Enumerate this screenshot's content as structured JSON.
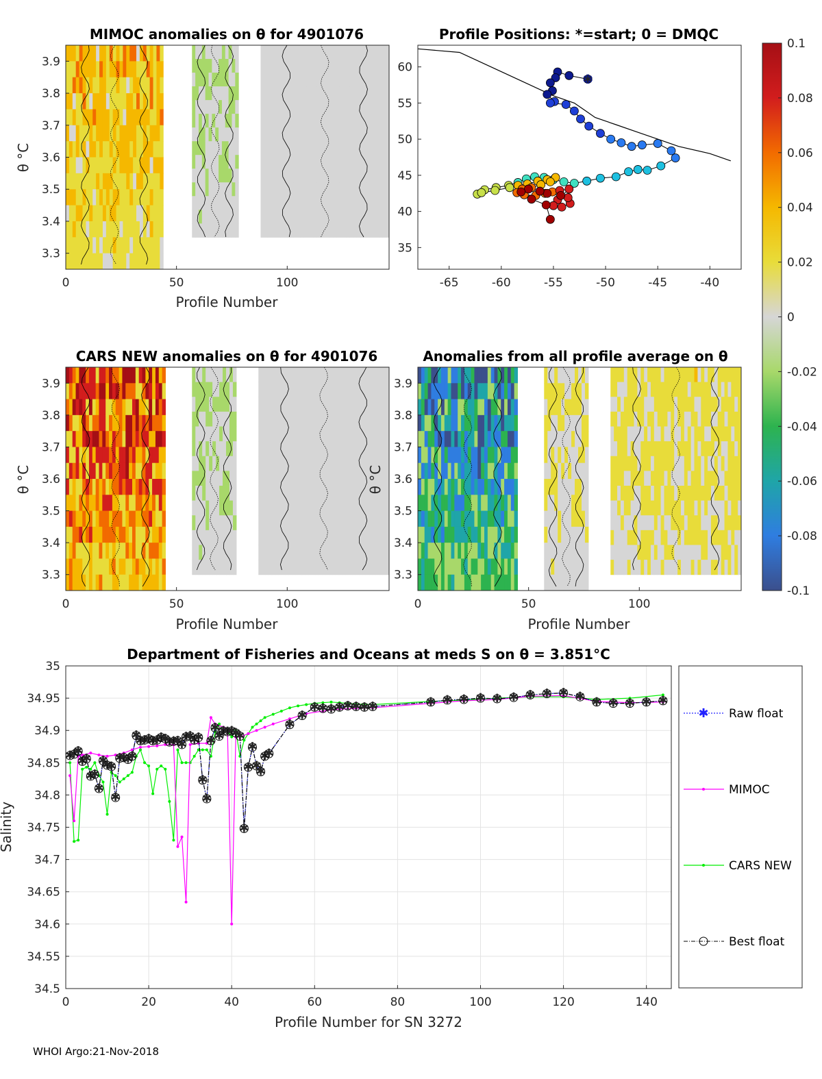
{
  "footer": "WHOI Argo:21-Nov-2018",
  "colors": {
    "mimoc": "#ff00ff",
    "cars": "#00ee00",
    "raw": "#2020ff",
    "best": "#000000",
    "land": "#000000"
  },
  "colorbar": {
    "ticks": [
      "0.1",
      "0.08",
      "0.06",
      "0.04",
      "0.02",
      "0",
      "-0.02",
      "-0.04",
      "-0.06",
      "-0.08",
      "-0.1"
    ],
    "values": [
      0.1,
      0.08,
      0.06,
      0.04,
      0.02,
      0,
      -0.02,
      -0.04,
      -0.06,
      -0.08,
      -0.1
    ],
    "range": [
      -0.1,
      0.1
    ],
    "stops": [
      "#3b4f8c",
      "#2f7de0",
      "#1fa5a8",
      "#2db34f",
      "#a8d86a",
      "#d6d6d6",
      "#e8dc3a",
      "#f5b800",
      "#f26b00",
      "#d21d1d",
      "#a50f15"
    ]
  },
  "chart_data": [
    {
      "type": "heatmap",
      "id": "mimoc",
      "title": "MIMOC anomalies on θ  for 4901076",
      "xlabel": "Profile Number",
      "ylabel": "θ °C",
      "xlim": [
        0,
        146
      ],
      "ylim": [
        3.25,
        3.95
      ],
      "xticks": [
        "0",
        "50",
        "100"
      ],
      "xtick_values": [
        0,
        50,
        100
      ],
      "yticks": [
        "3.3",
        "3.4",
        "3.5",
        "3.6",
        "3.7",
        "3.8",
        "3.9"
      ],
      "ytick_values": [
        3.3,
        3.4,
        3.5,
        3.6,
        3.7,
        3.8,
        3.9
      ],
      "segments": [
        {
          "x": [
            0,
            44
          ],
          "ymin": 3.25,
          "anom": 0.03
        },
        {
          "x": [
            57,
            78
          ],
          "ymin": 3.35,
          "anom": -0.01
        },
        {
          "x": [
            88,
            146
          ],
          "ymin": 3.35,
          "anom": 0.0
        }
      ]
    },
    {
      "type": "map",
      "id": "positions",
      "title": "Profile Positions: *=start; 0 = DMQC",
      "xlim": [
        -68,
        -37
      ],
      "ylim": [
        32,
        63
      ],
      "xticks": [
        "-65",
        "-60",
        "-55",
        "-50",
        "-45",
        "-40"
      ],
      "xtick_values": [
        -65,
        -60,
        -55,
        -50,
        -45,
        -40
      ],
      "yticks": [
        "35",
        "40",
        "45",
        "50",
        "55",
        "60"
      ],
      "ytick_values": [
        35,
        40,
        45,
        50,
        55,
        60
      ],
      "start": [
        -51.7,
        58.3
      ],
      "track_lon": [
        -51.7,
        -53.5,
        -54.6,
        -54.8,
        -55.3,
        -55.1,
        -55.6,
        -54.9,
        -55.3,
        -53.8,
        -53.0,
        -52.4,
        -51.6,
        -50.5,
        -49.5,
        -48.5,
        -47.5,
        -46.5,
        -45.0,
        -43.7,
        -43.3,
        -44.7,
        -46.0,
        -46.9,
        -47.8,
        -49.0,
        -50.5,
        -51.8,
        -53.0,
        -54.0,
        -55.0,
        -55.9,
        -56.8,
        -57.6,
        -58.4,
        -59.3,
        -60.5,
        -61.6,
        -62.3,
        -61.9,
        -60.6,
        -59.2,
        -58.4,
        -57.5,
        -56.5,
        -55.6,
        -54.8,
        -55.3,
        -56.2,
        -57.1,
        -58.0,
        -58.5,
        -57.8,
        -56.7,
        -55.8,
        -55.1,
        -54.4,
        -53.5,
        -54.6,
        -55.0,
        -54.2,
        -53.4,
        -53.6,
        -54.3,
        -55.6,
        -56.3,
        -57.4,
        -58.1,
        -57.1,
        -55.7,
        -55.3
      ],
      "track_lat": [
        58.3,
        58.8,
        59.3,
        58.5,
        57.8,
        56.7,
        56.2,
        55.2,
        55.0,
        54.8,
        53.9,
        52.8,
        51.8,
        50.8,
        50.0,
        49.5,
        49.0,
        49.2,
        49.4,
        48.4,
        47.4,
        46.3,
        45.7,
        45.8,
        45.5,
        44.8,
        44.6,
        44.2,
        43.9,
        44.1,
        44.4,
        44.7,
        44.8,
        44.5,
        44.0,
        43.6,
        43.3,
        43.0,
        42.4,
        42.6,
        42.9,
        43.3,
        43.6,
        43.8,
        44.2,
        44.4,
        44.7,
        44.1,
        43.7,
        43.3,
        43.1,
        42.6,
        42.3,
        42.2,
        42.5,
        42.7,
        42.9,
        43.1,
        41.6,
        40.8,
        40.6,
        41.1,
        41.9,
        42.2,
        42.5,
        42.8,
        43.1,
        42.7,
        41.7,
        40.9,
        38.9
      ],
      "coast_lon": [
        -68,
        -64,
        -61,
        -58,
        -55,
        -53,
        -52,
        -51,
        -49,
        -47,
        -45,
        -43,
        -40,
        -38
      ],
      "coast_lat": [
        62.5,
        62,
        60,
        58,
        56,
        55,
        54,
        53,
        52,
        51,
        50,
        49,
        48,
        47
      ]
    },
    {
      "type": "heatmap",
      "id": "cars",
      "title": "CARS NEW anomalies on θ for 4901076",
      "xlabel": "Profile Number",
      "ylabel": "θ °C",
      "xlim": [
        0,
        146
      ],
      "ylim": [
        3.25,
        3.95
      ],
      "xticks": [
        "0",
        "50",
        "100"
      ],
      "xtick_values": [
        0,
        50,
        100
      ],
      "yticks": [
        "3.3",
        "3.4",
        "3.5",
        "3.6",
        "3.7",
        "3.8",
        "3.9"
      ],
      "ytick_values": [
        3.3,
        3.4,
        3.5,
        3.6,
        3.7,
        3.8,
        3.9
      ],
      "segments": [
        {
          "x": [
            0,
            45
          ],
          "ymin": 3.25,
          "anom": 0.06
        },
        {
          "x": [
            57,
            77
          ],
          "ymin": 3.3,
          "anom": -0.01
        },
        {
          "x": [
            87,
            146
          ],
          "ymin": 3.3,
          "anom": 0.0
        }
      ]
    },
    {
      "type": "heatmap",
      "id": "avg",
      "title": "Anomalies from all profile average on θ",
      "xlabel": "Profile Number",
      "ylabel": "θ °C",
      "xlim": [
        0,
        146
      ],
      "ylim": [
        3.25,
        3.95
      ],
      "xticks": [
        "0",
        "50",
        "100"
      ],
      "xtick_values": [
        0,
        50,
        100
      ],
      "yticks": [
        "3.3",
        "3.4",
        "3.5",
        "3.6",
        "3.7",
        "3.8",
        "3.9"
      ],
      "ytick_values": [
        3.3,
        3.4,
        3.5,
        3.6,
        3.7,
        3.8,
        3.9
      ],
      "segments": [
        {
          "x": [
            0,
            45
          ],
          "ymin": 3.25,
          "anom": -0.06
        },
        {
          "x": [
            57,
            77
          ],
          "ymin": 3.25,
          "anom": 0.01
        },
        {
          "x": [
            87,
            146
          ],
          "ymin": 3.3,
          "anom": 0.015
        }
      ]
    },
    {
      "type": "line",
      "id": "salinity",
      "title": "Department of Fisheries and Oceans at meds S on θ = 3.851°C",
      "xlabel": "Profile Number for SN 3272",
      "ylabel": "Salinity",
      "xlim": [
        0,
        146
      ],
      "ylim": [
        34.5,
        35
      ],
      "xticks": [
        "0",
        "20",
        "40",
        "60",
        "80",
        "100",
        "120",
        "140"
      ],
      "xtick_values": [
        0,
        20,
        40,
        60,
        80,
        100,
        120,
        140
      ],
      "yticks": [
        "34.5",
        "34.55",
        "34.6",
        "34.65",
        "34.7",
        "34.75",
        "34.8",
        "34.85",
        "34.9",
        "34.95",
        "35"
      ],
      "ytick_values": [
        34.5,
        34.55,
        34.6,
        34.65,
        34.7,
        34.75,
        34.8,
        34.85,
        34.9,
        34.95,
        35
      ],
      "legend": [
        "Raw float",
        "MIMOC",
        "CARS NEW",
        "Best float"
      ],
      "x_float": [
        1,
        2,
        3,
        4,
        5,
        6,
        7,
        8,
        9,
        10,
        11,
        12,
        13,
        14,
        15,
        16,
        17,
        18,
        19,
        20,
        21,
        22,
        23,
        24,
        25,
        26,
        27,
        28,
        29,
        30,
        31,
        32,
        33,
        34,
        35,
        36,
        37,
        38,
        39,
        40,
        41,
        42,
        43,
        44,
        45,
        46,
        47,
        48,
        49,
        54,
        57,
        60,
        62,
        64,
        66,
        68,
        70,
        72,
        74,
        88,
        92,
        96,
        100,
        104,
        108,
        112,
        116,
        120,
        124,
        128,
        132,
        136,
        140,
        144
      ],
      "raw_float": [
        34.861,
        34.863,
        34.868,
        34.852,
        34.856,
        34.829,
        34.832,
        34.81,
        34.853,
        34.846,
        34.844,
        34.796,
        34.857,
        34.858,
        34.855,
        34.86,
        34.892,
        34.884,
        34.885,
        34.887,
        34.884,
        34.885,
        34.889,
        34.887,
        34.882,
        34.883,
        34.884,
        34.878,
        34.89,
        34.891,
        34.885,
        34.889,
        34.823,
        34.794,
        34.884,
        34.904,
        34.891,
        34.899,
        34.898,
        34.899,
        34.896,
        34.891,
        34.748,
        34.843,
        34.874,
        34.845,
        34.836,
        34.86,
        34.864,
        34.909,
        34.923,
        34.936,
        34.934,
        34.933,
        34.936,
        34.938,
        34.937,
        34.936,
        34.937,
        34.944,
        34.947,
        34.948,
        34.95,
        34.949,
        34.951,
        34.955,
        34.957,
        34.958,
        34.952,
        34.944,
        34.942,
        34.942,
        34.944,
        34.946
      ],
      "x_mimoc": [
        1,
        2,
        3,
        4,
        6,
        8,
        10,
        12,
        14,
        16,
        18,
        20,
        22,
        24,
        26,
        27,
        28,
        29,
        30,
        32,
        34,
        35,
        36,
        38,
        39,
        40,
        41,
        42,
        44,
        46,
        48,
        50,
        54,
        58,
        62,
        66,
        70,
        74,
        88,
        96,
        104,
        112,
        120,
        128,
        136,
        144
      ],
      "mimoc": [
        34.83,
        34.76,
        34.86,
        34.862,
        34.865,
        34.862,
        34.86,
        34.862,
        34.865,
        34.87,
        34.874,
        34.875,
        34.876,
        34.878,
        34.878,
        34.72,
        34.735,
        34.634,
        34.878,
        34.88,
        34.88,
        34.92,
        34.91,
        34.905,
        34.9,
        34.6,
        34.89,
        34.89,
        34.895,
        34.9,
        34.905,
        34.91,
        34.918,
        34.926,
        34.93,
        34.933,
        34.934,
        34.935,
        34.942,
        34.946,
        34.948,
        34.953,
        34.954,
        34.945,
        34.943,
        34.944
      ],
      "x_cars": [
        1,
        2,
        3,
        4,
        5,
        6,
        7,
        8,
        9,
        10,
        11,
        12,
        13,
        14,
        15,
        16,
        17,
        18,
        19,
        20,
        21,
        22,
        23,
        24,
        25,
        26,
        27,
        28,
        29,
        30,
        31,
        32,
        33,
        34,
        35,
        36,
        37,
        38,
        39,
        40,
        41,
        42,
        43,
        44,
        45,
        46,
        47,
        48,
        50,
        52,
        54,
        56,
        58,
        60,
        62,
        64,
        66,
        68,
        70,
        74,
        88,
        96,
        104,
        112,
        120,
        128,
        136,
        144
      ],
      "cars": [
        34.85,
        34.728,
        34.73,
        34.84,
        34.843,
        34.84,
        34.85,
        34.83,
        34.82,
        34.77,
        34.835,
        34.83,
        34.82,
        34.825,
        34.83,
        34.835,
        34.86,
        34.87,
        34.85,
        34.845,
        34.802,
        34.84,
        34.845,
        34.84,
        34.79,
        34.73,
        34.87,
        34.85,
        34.85,
        34.85,
        34.86,
        34.87,
        34.87,
        34.87,
        34.86,
        34.898,
        34.91,
        34.9,
        34.9,
        34.89,
        34.9,
        34.86,
        34.885,
        34.895,
        34.905,
        34.91,
        34.915,
        34.92,
        34.925,
        34.93,
        34.935,
        34.938,
        34.94,
        34.942,
        34.943,
        34.944,
        34.943,
        34.942,
        34.941,
        34.94,
        34.945,
        34.947,
        34.95,
        34.952,
        34.952,
        34.948,
        34.95,
        34.955
      ]
    }
  ]
}
